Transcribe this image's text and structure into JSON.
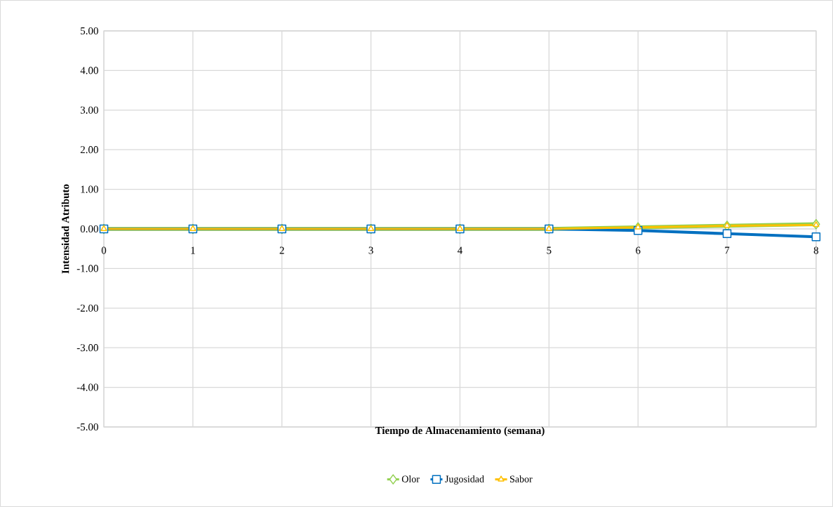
{
  "chart_data": {
    "type": "line",
    "xlabel": "Tiempo de Almacenamiento (semana)",
    "ylabel": "Intensidad Atributo",
    "x": [
      0,
      1,
      2,
      3,
      4,
      5,
      6,
      7,
      8
    ],
    "series": [
      {
        "name": "Olor",
        "color": "#92d050",
        "marker": "diamond",
        "values": [
          0,
          0,
          0,
          0,
          0,
          0,
          0.04,
          0.08,
          0.12
        ]
      },
      {
        "name": "Jugosidad",
        "color": "#0070c0",
        "marker": "square",
        "values": [
          0,
          0,
          0,
          0,
          0,
          0,
          -0.04,
          -0.12,
          -0.2
        ]
      },
      {
        "name": "Sabor",
        "color": "#ffc000",
        "marker": "triangle",
        "values": [
          0,
          0,
          0,
          0,
          0,
          0,
          0.04,
          0.08,
          0.1
        ]
      }
    ],
    "xlim": [
      0,
      8
    ],
    "xticks": [
      0,
      1,
      2,
      3,
      4,
      5,
      6,
      7,
      8
    ],
    "ylim": [
      -5,
      5
    ],
    "yticks": [
      {
        "value": -5,
        "label": "-5.00"
      },
      {
        "value": -4,
        "label": "-4.00"
      },
      {
        "value": -3,
        "label": "-3.00"
      },
      {
        "value": -2,
        "label": "-2.00"
      },
      {
        "value": -1,
        "label": "-1.00"
      },
      {
        "value": 0,
        "label": "0.00"
      },
      {
        "value": 1,
        "label": "1.00"
      },
      {
        "value": 2,
        "label": "2.00"
      },
      {
        "value": 3,
        "label": "3.00"
      },
      {
        "value": 4,
        "label": "4.00"
      },
      {
        "value": 5,
        "label": "5.00"
      }
    ],
    "grid": true,
    "legend": "bottom"
  }
}
